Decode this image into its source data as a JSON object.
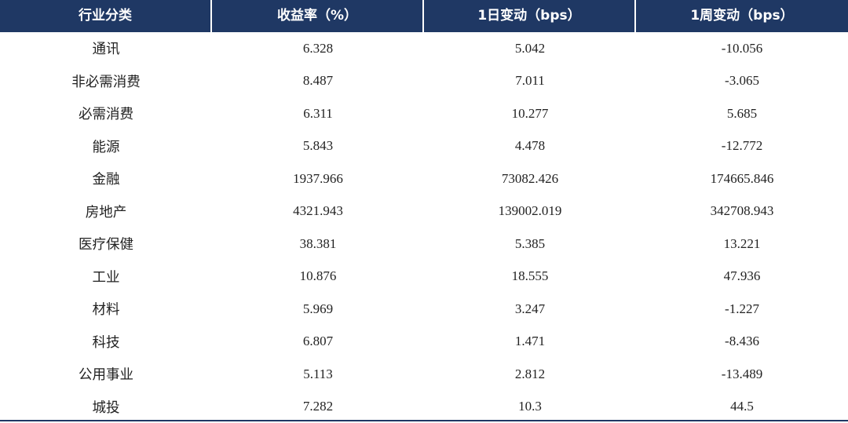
{
  "colors": {
    "header_bg": "#1f3864",
    "header_text": "#ffffff"
  },
  "headers": [
    "行业分类",
    "收益率（%）",
    "1日变动（bps）",
    "1周变动（bps）"
  ],
  "rows": [
    {
      "category": "通讯",
      "yield": "6.328",
      "change_1d": "5.042",
      "change_1w": "-10.056"
    },
    {
      "category": "非必需消费",
      "yield": "8.487",
      "change_1d": "7.011",
      "change_1w": "-3.065"
    },
    {
      "category": "必需消费",
      "yield": "6.311",
      "change_1d": "10.277",
      "change_1w": "5.685"
    },
    {
      "category": "能源",
      "yield": "5.843",
      "change_1d": "4.478",
      "change_1w": "-12.772"
    },
    {
      "category": "金融",
      "yield": "1937.966",
      "change_1d": "73082.426",
      "change_1w": "174665.846"
    },
    {
      "category": "房地产",
      "yield": "4321.943",
      "change_1d": "139002.019",
      "change_1w": "342708.943"
    },
    {
      "category": "医疗保健",
      "yield": "38.381",
      "change_1d": "5.385",
      "change_1w": "13.221"
    },
    {
      "category": "工业",
      "yield": "10.876",
      "change_1d": "18.555",
      "change_1w": "47.936"
    },
    {
      "category": "材料",
      "yield": "5.969",
      "change_1d": "3.247",
      "change_1w": "-1.227"
    },
    {
      "category": "科技",
      "yield": "6.807",
      "change_1d": "1.471",
      "change_1w": "-8.436"
    },
    {
      "category": "公用事业",
      "yield": "5.113",
      "change_1d": "2.812",
      "change_1w": "-13.489"
    },
    {
      "category": "城投",
      "yield": "7.282",
      "change_1d": "10.3",
      "change_1w": "44.5"
    }
  ]
}
